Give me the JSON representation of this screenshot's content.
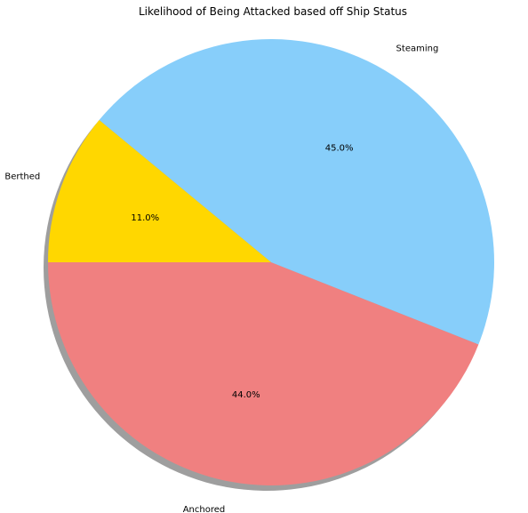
{
  "chart_data": {
    "type": "pie",
    "title": "Likelihood of Being Attacked based off Ship Status",
    "slices": [
      {
        "label": "Anchored",
        "value": 44.0,
        "percent_label": "44.0%",
        "color": "#F08080"
      },
      {
        "label": "Steaming",
        "value": 45.0,
        "percent_label": "45.0%",
        "color": "#87CEFA"
      },
      {
        "label": "Berthed",
        "value": 11.0,
        "percent_label": "11.0%",
        "color": "#FFD700"
      }
    ],
    "start_angle_deg": 180,
    "direction": "counterclockwise",
    "shadow": true,
    "legend": "none"
  }
}
